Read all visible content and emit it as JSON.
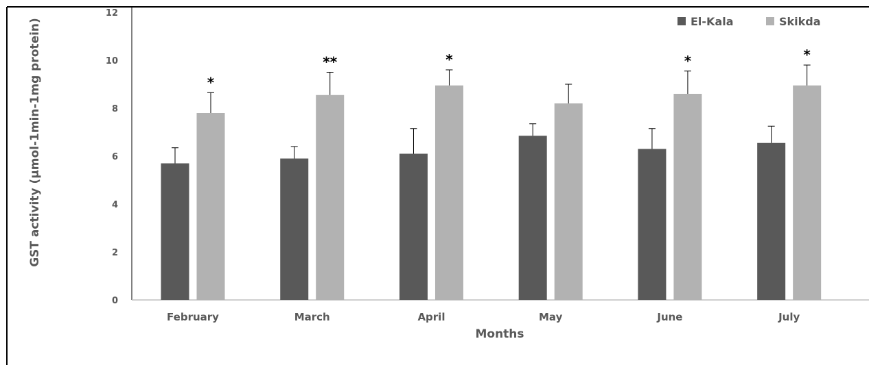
{
  "chart_data": {
    "type": "bar",
    "categories": [
      "February",
      "March",
      "April",
      "May",
      "June",
      "July"
    ],
    "series": [
      {
        "name": "El-Kala",
        "color": "#595959",
        "values": [
          5.7,
          5.9,
          6.1,
          6.85,
          6.3,
          6.55
        ],
        "errors": [
          0.65,
          0.5,
          1.05,
          0.5,
          0.85,
          0.7
        ]
      },
      {
        "name": "Skikda",
        "color": "#b2b2b2",
        "values": [
          7.8,
          8.55,
          8.95,
          8.2,
          8.6,
          8.95
        ],
        "errors": [
          0.85,
          0.95,
          0.65,
          0.8,
          0.95,
          0.85
        ]
      }
    ],
    "significance": [
      "*",
      "**",
      "*",
      "",
      "*",
      "*"
    ],
    "xlabel": "Months",
    "ylabel": "GST activity (µmol-1min-1mg protein)",
    "ylim": [
      0,
      12
    ],
    "yticks": [
      0,
      2,
      4,
      6,
      8,
      10,
      12
    ],
    "legend_position": "top-right",
    "grid": false
  }
}
